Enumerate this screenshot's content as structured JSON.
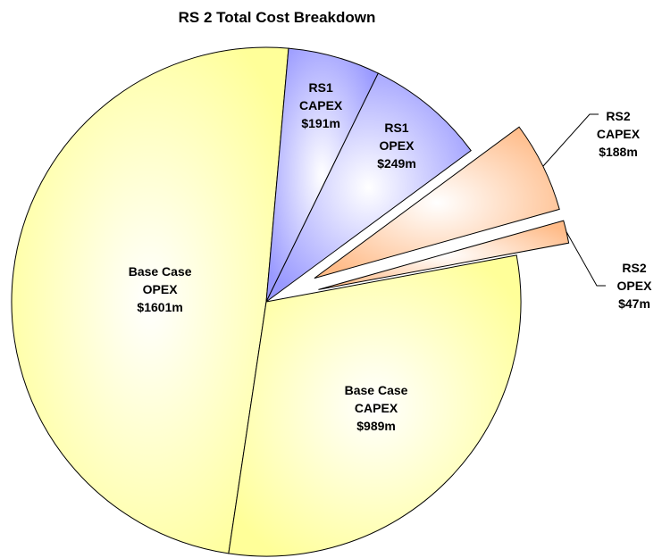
{
  "chart_data": {
    "type": "pie",
    "title": "RS 2 Total Cost Breakdown",
    "categories": [
      "Base Case OPEX",
      "RS1 CAPEX",
      "RS1 OPEX",
      "RS2 CAPEX",
      "RS2 OPEX",
      "Base Case CAPEX"
    ],
    "values": [
      1601,
      191,
      249,
      188,
      47,
      989
    ],
    "value_labels": [
      "$1601m",
      "$191m",
      "$249m",
      "$188m",
      "$47m",
      "$989m"
    ],
    "colors": [
      "#ffff99",
      "#9999ff",
      "#9999ff",
      "#ffbb88",
      "#ffbb88",
      "#ffff99"
    ],
    "explode": [
      0,
      0,
      0,
      1,
      1,
      0
    ]
  }
}
